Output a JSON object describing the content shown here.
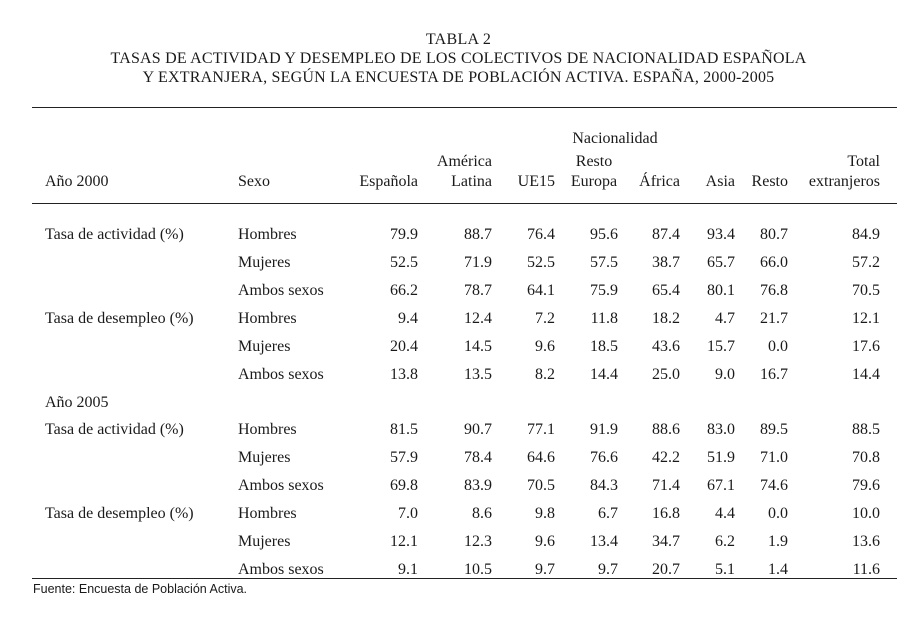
{
  "title": {
    "line1": "TABLA 2",
    "line2": "TASAS DE ACTIVIDAD Y DESEMPLEO DE LOS COLECTIVOS DE NACIONALIDAD ESPAÑOLA",
    "line3": "Y EXTRANJERA, SEGÚN LA ENCUESTA DE POBLACIÓN ACTIVA. ESPAÑA, 2000-2005"
  },
  "header": {
    "group": "Nacionalidad",
    "row_label": "Año 2000",
    "sexo": "Sexo",
    "espanola": "Española",
    "america_1": "América",
    "america_2": "Latina",
    "ue15": "UE15",
    "resto_europa_1": "Resto",
    "resto_europa_2": "Europa",
    "africa": "África",
    "asia": "Asia",
    "resto": "Resto",
    "total_1": "Total",
    "total_2": "extranjeros"
  },
  "year_2005_label": "Año 2005",
  "rows": [
    {
      "indicator": "Tasa de actividad (%)",
      "sexo": "Hombres",
      "values": [
        "79.9",
        "88.7",
        "76.4",
        "95.6",
        "87.4",
        "93.4",
        "80.7",
        "84.9"
      ]
    },
    {
      "indicator": "",
      "sexo": "Mujeres",
      "values": [
        "52.5",
        "71.9",
        "52.5",
        "57.5",
        "38.7",
        "65.7",
        "66.0",
        "57.2"
      ]
    },
    {
      "indicator": "",
      "sexo": "Ambos sexos",
      "values": [
        "66.2",
        "78.7",
        "64.1",
        "75.9",
        "65.4",
        "80.1",
        "76.8",
        "70.5"
      ]
    },
    {
      "indicator": "Tasa de desempleo (%)",
      "sexo": "Hombres",
      "values": [
        "9.4",
        "12.4",
        "7.2",
        "11.8",
        "18.2",
        "4.7",
        "21.7",
        "12.1"
      ]
    },
    {
      "indicator": "",
      "sexo": "Mujeres",
      "values": [
        "20.4",
        "14.5",
        "9.6",
        "18.5",
        "43.6",
        "15.7",
        "0.0",
        "17.6"
      ]
    },
    {
      "indicator": "",
      "sexo": "Ambos sexos",
      "values": [
        "13.8",
        "13.5",
        "8.2",
        "14.4",
        "25.0",
        "9.0",
        "16.7",
        "14.4"
      ]
    },
    {
      "indicator": "Tasa de actividad (%)",
      "sexo": "Hombres",
      "values": [
        "81.5",
        "90.7",
        "77.1",
        "91.9",
        "88.6",
        "83.0",
        "89.5",
        "88.5"
      ]
    },
    {
      "indicator": "",
      "sexo": "Mujeres",
      "values": [
        "57.9",
        "78.4",
        "64.6",
        "76.6",
        "42.2",
        "51.9",
        "71.0",
        "70.8"
      ]
    },
    {
      "indicator": "",
      "sexo": "Ambos sexos",
      "values": [
        "69.8",
        "83.9",
        "70.5",
        "84.3",
        "71.4",
        "67.1",
        "74.6",
        "79.6"
      ]
    },
    {
      "indicator": "Tasa de desempleo (%)",
      "sexo": "Hombres",
      "values": [
        "7.0",
        "8.6",
        "9.8",
        "6.7",
        "16.8",
        "4.4",
        "0.0",
        "10.0"
      ]
    },
    {
      "indicator": "",
      "sexo": "Mujeres",
      "values": [
        "12.1",
        "12.3",
        "9.6",
        "13.4",
        "34.7",
        "6.2",
        "1.9",
        "13.6"
      ]
    },
    {
      "indicator": "",
      "sexo": "Ambos sexos",
      "values": [
        "9.1",
        "10.5",
        "9.7",
        "9.7",
        "20.7",
        "5.1",
        "1.4",
        "11.6"
      ]
    }
  ],
  "source": "Fuente: Encuesta de Población Activa."
}
